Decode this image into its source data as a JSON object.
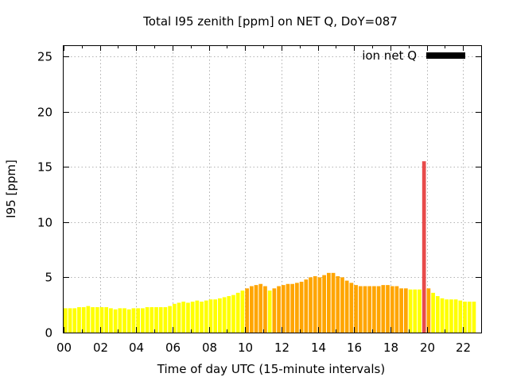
{
  "chart_data": {
    "type": "bar",
    "title": "Total I95 zenith [ppm] on NET Q, DoY=087",
    "xlabel": "Time of day UTC (15-minute intervals)",
    "ylabel": "I95 [ppm]",
    "xlim": [
      0,
      23
    ],
    "ylim": [
      0,
      26
    ],
    "x_ticks": [
      "00",
      "02",
      "04",
      "06",
      "08",
      "10",
      "12",
      "14",
      "16",
      "18",
      "20",
      "22"
    ],
    "y_ticks": [
      "0",
      "5",
      "10",
      "15",
      "20",
      "25"
    ],
    "grid": true,
    "legend": {
      "label": "ion net Q",
      "color": "#000000",
      "position": "top-right"
    },
    "interval_hours": 0.25,
    "thresholds": [
      {
        "min": 0,
        "color": "#ffff00"
      },
      {
        "min": 4,
        "color": "#ffa500"
      },
      {
        "min": 8,
        "color": "#ff0000"
      }
    ],
    "highlight": {
      "index": 79,
      "color": "#e84b4b"
    },
    "values": [
      2.2,
      2.2,
      2.2,
      2.3,
      2.3,
      2.4,
      2.3,
      2.3,
      2.3,
      2.3,
      2.2,
      2.1,
      2.2,
      2.2,
      2.1,
      2.2,
      2.2,
      2.2,
      2.3,
      2.3,
      2.3,
      2.3,
      2.3,
      2.4,
      2.6,
      2.7,
      2.8,
      2.7,
      2.8,
      2.9,
      2.8,
      2.9,
      3.0,
      3.0,
      3.1,
      3.2,
      3.3,
      3.4,
      3.6,
      3.8,
      4.0,
      4.2,
      4.3,
      4.4,
      4.2,
      3.8,
      4.0,
      4.2,
      4.3,
      4.4,
      4.4,
      4.5,
      4.6,
      4.8,
      5.0,
      5.1,
      5.0,
      5.2,
      5.4,
      5.4,
      5.1,
      5.0,
      4.7,
      4.5,
      4.3,
      4.2,
      4.2,
      4.2,
      4.2,
      4.2,
      4.3,
      4.3,
      4.2,
      4.2,
      4.0,
      4.0,
      3.9,
      3.9,
      3.9,
      15.5,
      4.0,
      3.6,
      3.3,
      3.1,
      3.0,
      3.0,
      3.0,
      2.9,
      2.8,
      2.8,
      2.8
    ]
  }
}
